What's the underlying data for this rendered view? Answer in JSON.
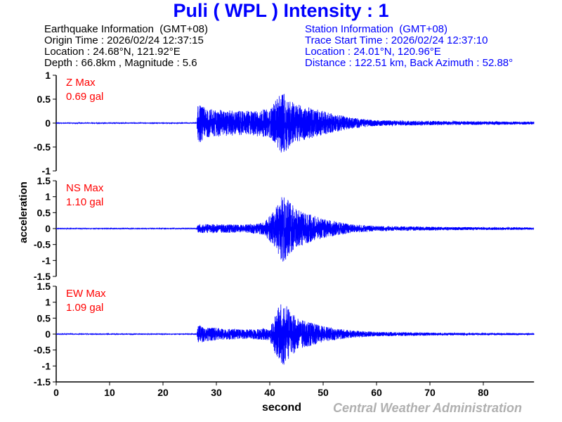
{
  "title": "Puli  ( WPL )  Intensity : 1",
  "earthquake": {
    "heading": "Earthquake Information  (GMT+08)",
    "origin_time": "Origin Time : 2026/02/24 12:37:15",
    "location": "Location : 24.68°N, 121.92°E",
    "depth_magnitude": "Depth : 66.8km , Magnitude : 5.6"
  },
  "station": {
    "heading": "Station Information  (GMT+08)",
    "trace_start": "Trace Start Time : 2026/02/24 12:37:10",
    "location": "Location : 24.01°N, 120.96°E",
    "distance": "Distance : 122.51 km, Back Azimuth : 52.88°"
  },
  "credit": "Central Weather Administration",
  "chart_data": {
    "type": "line",
    "xlabel": "second",
    "ylabel": "acceleration",
    "xlim": [
      0,
      89.5
    ],
    "xticks": [
      0,
      10,
      20,
      30,
      40,
      50,
      60,
      70,
      80
    ],
    "grid": false,
    "line_color": "#0000ff",
    "label_color": "#ff0000",
    "panels": [
      {
        "component": "Z",
        "max_label": "Z Max",
        "max_value": "0.69 gal",
        "ylim": [
          -1,
          1
        ],
        "yticks": [
          1,
          0.5,
          0,
          -0.5,
          -1
        ],
        "envelope": [
          [
            0,
            0.01
          ],
          [
            26.3,
            0.01
          ],
          [
            26.6,
            0.45
          ],
          [
            28,
            0.3
          ],
          [
            35,
            0.25
          ],
          [
            40,
            0.3
          ],
          [
            42.3,
            0.65
          ],
          [
            45,
            0.4
          ],
          [
            50,
            0.25
          ],
          [
            55,
            0.12
          ],
          [
            60,
            0.06
          ],
          [
            75,
            0.04
          ],
          [
            89.5,
            0.03
          ]
        ]
      },
      {
        "component": "NS",
        "max_label": "NS Max",
        "max_value": "1.10 gal",
        "ylim": [
          -1.5,
          1.5
        ],
        "yticks": [
          1.5,
          1,
          0.5,
          0,
          -0.5,
          -1,
          -1.5
        ],
        "envelope": [
          [
            0,
            0.01
          ],
          [
            26.3,
            0.01
          ],
          [
            26.6,
            0.15
          ],
          [
            35,
            0.12
          ],
          [
            39,
            0.2
          ],
          [
            41,
            0.6
          ],
          [
            42.5,
            1.1
          ],
          [
            45,
            0.6
          ],
          [
            50,
            0.3
          ],
          [
            55,
            0.15
          ],
          [
            60,
            0.08
          ],
          [
            75,
            0.05
          ],
          [
            89.5,
            0.04
          ]
        ]
      },
      {
        "component": "EW",
        "max_label": "EW Max",
        "max_value": "1.09 gal",
        "ylim": [
          -1.5,
          1.5
        ],
        "yticks": [
          1.5,
          1,
          0.5,
          0,
          -0.5,
          -1,
          -1.5
        ],
        "envelope": [
          [
            0,
            0.01
          ],
          [
            26.3,
            0.01
          ],
          [
            26.6,
            0.3
          ],
          [
            28,
            0.22
          ],
          [
            35,
            0.15
          ],
          [
            40,
            0.2
          ],
          [
            41.5,
            0.8
          ],
          [
            42.3,
            1.09
          ],
          [
            45,
            0.5
          ],
          [
            50,
            0.25
          ],
          [
            55,
            0.12
          ],
          [
            60,
            0.07
          ],
          [
            75,
            0.04
          ],
          [
            89.5,
            0.03
          ]
        ]
      }
    ]
  }
}
